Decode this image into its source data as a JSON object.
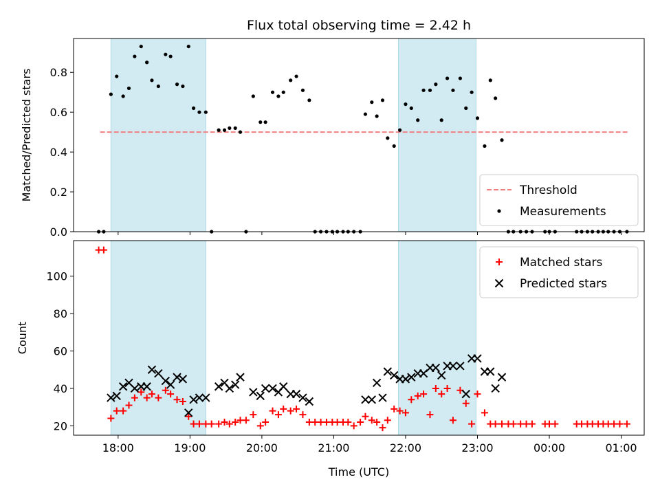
{
  "chart_data": {
    "type": "scatter",
    "title": "Flux total observing time = 2.42 h",
    "xlabel": "Time (UTC)",
    "x_unit": "hours since 18:00 UTC",
    "xlim": [
      -0.62,
      7.32
    ],
    "x_ticks": [
      {
        "x": 0,
        "label": "18:00"
      },
      {
        "x": 1,
        "label": "19:00"
      },
      {
        "x": 2,
        "label": "20:00"
      },
      {
        "x": 3,
        "label": "21:00"
      },
      {
        "x": 4,
        "label": "22:00"
      },
      {
        "x": 5,
        "label": "23:00"
      },
      {
        "x": 6,
        "label": "00:00"
      },
      {
        "x": 7,
        "label": "01:00"
      }
    ],
    "shaded_intervals": [
      [
        -0.1,
        1.22
      ],
      [
        3.9,
        4.98
      ]
    ],
    "shade_color": "#add8e6",
    "panels": [
      {
        "ylabel": "Matched/Predicted stars",
        "ylim": [
          0,
          0.97
        ],
        "y_ticks": [
          {
            "y": 0,
            "label": "0.0"
          },
          {
            "y": 0.2,
            "label": "0.2"
          },
          {
            "y": 0.4,
            "label": "0.4"
          },
          {
            "y": 0.6,
            "label": "0.6"
          },
          {
            "y": 0.8,
            "label": "0.8"
          }
        ],
        "legend_position": "lower-right",
        "threshold": {
          "name": "Threshold",
          "value": 0.5,
          "x_range": [
            -0.25,
            7.1
          ],
          "color": "#f08080"
        },
        "series": [
          {
            "name": "Measurements",
            "marker": "dot",
            "color": "#000000",
            "x": [
              -0.27,
              -0.2,
              -0.1,
              -0.02,
              0.07,
              0.15,
              0.23,
              0.32,
              0.4,
              0.47,
              0.56,
              0.66,
              0.73,
              0.82,
              0.9,
              0.98,
              1.05,
              1.13,
              1.22,
              1.3,
              1.4,
              1.48,
              1.55,
              1.63,
              1.7,
              1.78,
              1.88,
              1.98,
              2.05,
              2.15,
              2.23,
              2.3,
              2.4,
              2.48,
              2.57,
              2.66,
              2.74,
              2.82,
              2.9,
              2.98,
              3.05,
              3.13,
              3.2,
              3.28,
              3.37,
              3.44,
              3.53,
              3.6,
              3.68,
              3.75,
              3.84,
              3.92,
              4.0,
              4.08,
              4.17,
              4.25,
              4.34,
              4.42,
              4.5,
              4.58,
              4.66,
              4.76,
              4.84,
              4.92,
              5.0,
              5.1,
              5.18,
              5.25,
              5.34,
              5.43,
              5.5,
              5.6,
              5.68,
              5.76,
              5.94,
              6.0,
              6.08,
              6.38,
              6.45,
              6.53,
              6.6,
              6.68,
              6.75,
              6.82,
              6.9,
              6.98,
              7.08
            ],
            "y": [
              0,
              0,
              0.69,
              0.78,
              0.68,
              0.72,
              0.88,
              0.93,
              0.85,
              0.76,
              0.73,
              0.89,
              0.88,
              0.74,
              0.73,
              0.93,
              0.62,
              0.6,
              0.6,
              0,
              0.51,
              0.51,
              0.52,
              0.52,
              0.5,
              0,
              0.68,
              0.55,
              0.55,
              0.7,
              0.68,
              0.7,
              0.76,
              0.78,
              0.71,
              0.66,
              0,
              0,
              0,
              0,
              0,
              0,
              0,
              0,
              0,
              0.59,
              0.65,
              0.58,
              0.66,
              0.47,
              0.43,
              0.51,
              0.64,
              0.62,
              0.56,
              0.71,
              0.71,
              0.74,
              0.56,
              0.77,
              0.71,
              0.77,
              0.62,
              0.7,
              0.57,
              0.43,
              0.76,
              0.67,
              0.46,
              0,
              0,
              0,
              0,
              0,
              0,
              0,
              0,
              0,
              0,
              0,
              0,
              0,
              0,
              0,
              0,
              0,
              0
            ]
          }
        ]
      },
      {
        "ylabel": "Count",
        "ylim": [
          15,
          119
        ],
        "y_ticks": [
          {
            "y": 20,
            "label": "20"
          },
          {
            "y": 40,
            "label": "40"
          },
          {
            "y": 60,
            "label": "60"
          },
          {
            "y": 80,
            "label": "80"
          },
          {
            "y": 100,
            "label": "100"
          }
        ],
        "legend_position": "upper-right",
        "series": [
          {
            "name": "Matched stars",
            "marker": "plus",
            "color": "#ff0000",
            "x": [
              -0.27,
              -0.2,
              -0.1,
              -0.02,
              0.07,
              0.15,
              0.23,
              0.32,
              0.4,
              0.47,
              0.56,
              0.66,
              0.73,
              0.82,
              0.9,
              0.98,
              1.05,
              1.13,
              1.22,
              1.3,
              1.4,
              1.48,
              1.55,
              1.63,
              1.7,
              1.78,
              1.88,
              1.98,
              2.05,
              2.15,
              2.23,
              2.3,
              2.4,
              2.48,
              2.57,
              2.66,
              2.74,
              2.82,
              2.9,
              2.98,
              3.05,
              3.13,
              3.2,
              3.28,
              3.37,
              3.44,
              3.53,
              3.6,
              3.68,
              3.75,
              3.84,
              3.92,
              4.0,
              4.08,
              4.17,
              4.25,
              4.34,
              4.42,
              4.5,
              4.58,
              4.66,
              4.76,
              4.84,
              4.92,
              5.0,
              5.1,
              5.18,
              5.25,
              5.34,
              5.43,
              5.5,
              5.6,
              5.68,
              5.76,
              5.94,
              6.0,
              6.08,
              6.38,
              6.45,
              6.53,
              6.6,
              6.68,
              6.75,
              6.82,
              6.9,
              6.98,
              7.08
            ],
            "y": [
              114,
              114,
              24,
              28,
              28,
              31,
              35,
              38,
              35,
              37,
              35,
              39,
              37,
              34,
              33,
              25,
              21,
              21,
              21,
              21,
              21,
              22,
              21,
              22,
              23,
              23,
              26,
              20,
              22,
              28,
              26,
              29,
              28,
              29,
              26,
              22,
              22,
              22,
              22,
              22,
              22,
              22,
              22,
              20,
              22,
              25,
              23,
              22,
              19,
              23,
              29,
              28,
              27,
              34,
              36,
              37,
              26,
              40,
              37,
              40,
              23,
              39,
              32,
              21,
              37,
              27,
              21,
              21,
              21,
              21,
              21,
              21,
              21,
              21,
              21,
              21,
              21,
              21,
              21,
              21,
              21,
              21,
              21,
              21,
              21,
              21,
              21
            ]
          },
          {
            "name": "Predicted stars",
            "marker": "x",
            "color": "#000000",
            "x": [
              -0.1,
              -0.02,
              0.07,
              0.15,
              0.23,
              0.32,
              0.4,
              0.47,
              0.56,
              0.66,
              0.73,
              0.82,
              0.9,
              0.98,
              1.05,
              1.13,
              1.22,
              1.4,
              1.48,
              1.55,
              1.63,
              1.7,
              1.88,
              1.98,
              2.05,
              2.15,
              2.23,
              2.3,
              2.4,
              2.48,
              2.57,
              2.66,
              3.44,
              3.53,
              3.6,
              3.68,
              3.75,
              3.84,
              3.92,
              4.0,
              4.08,
              4.17,
              4.25,
              4.34,
              4.42,
              4.5,
              4.58,
              4.66,
              4.76,
              4.84,
              4.92,
              5.0,
              5.1,
              5.18,
              5.25,
              5.34
            ],
            "y": [
              35,
              36,
              41,
              43,
              40,
              41,
              41,
              50,
              48,
              44,
              42,
              46,
              45,
              27,
              34,
              35,
              35,
              41,
              43,
              40,
              42,
              46,
              38,
              36,
              40,
              40,
              38,
              41,
              37,
              37,
              35,
              33,
              34,
              34,
              43,
              35,
              49,
              47,
              45,
              45,
              46,
              48,
              48,
              51,
              51,
              47,
              52,
              52,
              52,
              37,
              56,
              56,
              49,
              49,
              40,
              46
            ]
          }
        ]
      }
    ]
  }
}
